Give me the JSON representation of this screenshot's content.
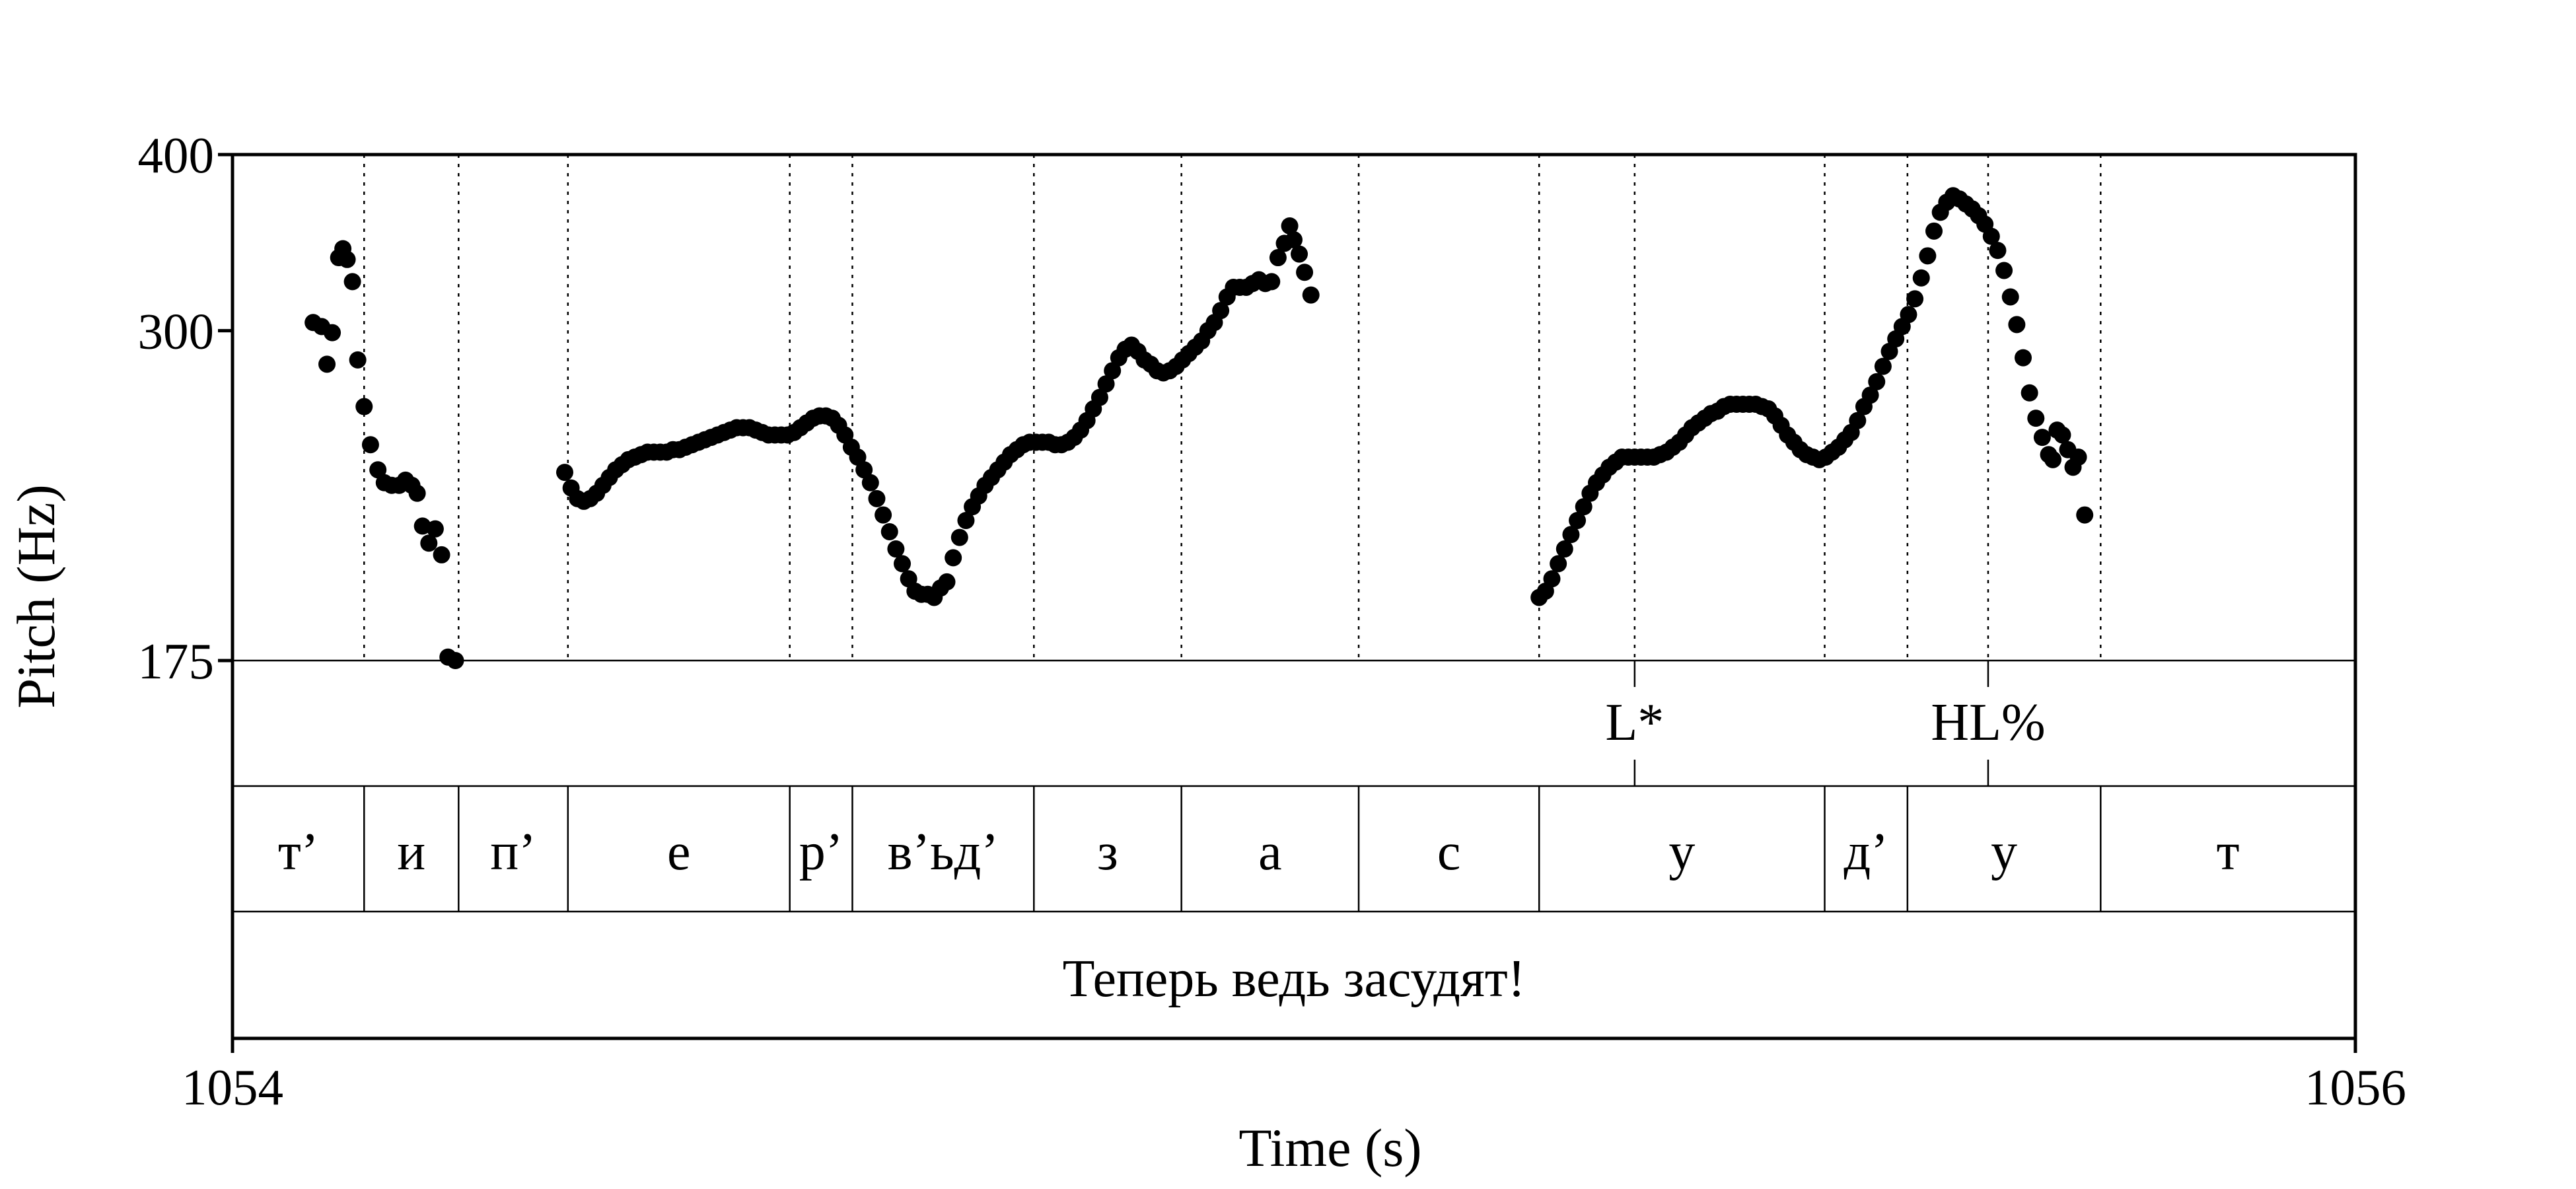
{
  "chart_data": {
    "type": "scatter",
    "xlabel": "Time (s)",
    "ylabel": "Pitch (Hz)",
    "xlim": [
      1054,
      1056
    ],
    "ylim": [
      175,
      400
    ],
    "y_scale": "log",
    "x_ticks": [
      "1054",
      "1056"
    ],
    "y_ticks": [
      {
        "value": 175,
        "label": "175"
      },
      {
        "value": 300,
        "label": "300"
      },
      {
        "value": 400,
        "label": "400"
      }
    ],
    "grid": "dotted vertical lines at segment boundaries",
    "colors": {
      "points": "#000000",
      "frame": "#000000",
      "background": "#ffffff"
    },
    "segment_boundaries": [
      1054.124,
      1054.213,
      1054.316,
      1054.525,
      1054.584,
      1054.755,
      1054.894,
      1055.061,
      1055.231,
      1055.321,
      1055.5,
      1055.578,
      1055.654,
      1055.76
    ],
    "tone_tier": [
      {
        "time": 1055.321,
        "label": "L*"
      },
      {
        "time": 1055.654,
        "label": "HL%"
      }
    ],
    "segment_tier": [
      {
        "start": 1054.0,
        "end": 1054.124,
        "label": "т’"
      },
      {
        "start": 1054.124,
        "end": 1054.213,
        "label": "и"
      },
      {
        "start": 1054.213,
        "end": 1054.316,
        "label": "п’"
      },
      {
        "start": 1054.316,
        "end": 1054.525,
        "label": "е"
      },
      {
        "start": 1054.525,
        "end": 1054.584,
        "label": "р’"
      },
      {
        "start": 1054.584,
        "end": 1054.755,
        "label": "в’ьд’"
      },
      {
        "start": 1054.755,
        "end": 1054.894,
        "label": "з"
      },
      {
        "start": 1054.894,
        "end": 1055.061,
        "label": "а"
      },
      {
        "start": 1055.061,
        "end": 1055.231,
        "label": "с"
      },
      {
        "start": 1055.231,
        "end": 1055.5,
        "label": "у"
      },
      {
        "start": 1055.5,
        "end": 1055.578,
        "label": "д’"
      },
      {
        "start": 1055.578,
        "end": 1055.76,
        "label": "у"
      },
      {
        "start": 1055.76,
        "end": 1056.0,
        "label": "т"
      }
    ],
    "sentence_tier": {
      "start": 1054.0,
      "end": 1056.0,
      "label": "Теперь ведь засудят!"
    },
    "series": [
      {
        "points": [
          [
            1054.076,
            304
          ],
          [
            1054.084,
            302
          ],
          [
            1054.089,
            284
          ],
          [
            1054.094,
            299
          ],
          [
            1054.1,
            338
          ],
          [
            1054.104,
            343
          ],
          [
            1054.108,
            337
          ],
          [
            1054.113,
            325
          ],
          [
            1054.118,
            286
          ],
          [
            1054.124,
            265
          ],
          [
            1054.13,
            249
          ],
          [
            1054.137,
            239
          ],
          [
            1054.143,
            234
          ],
          [
            1054.15,
            233
          ],
          [
            1054.157,
            233
          ],
          [
            1054.163,
            235
          ],
          [
            1054.169,
            233
          ],
          [
            1054.174,
            230
          ],
          [
            1054.179,
            218
          ],
          [
            1054.185,
            212
          ],
          [
            1054.191,
            217
          ],
          [
            1054.197,
            208
          ],
          [
            1054.203,
            176
          ],
          [
            1054.21,
            175
          ]
        ]
      },
      {
        "points": [
          [
            1054.313,
            238
          ],
          [
            1054.319,
            232
          ],
          [
            1054.325,
            228
          ],
          [
            1054.331,
            227
          ],
          [
            1054.337,
            228
          ],
          [
            1054.343,
            230
          ],
          [
            1054.349,
            233
          ],
          [
            1054.355,
            236
          ],
          [
            1054.361,
            239
          ],
          [
            1054.367,
            241
          ],
          [
            1054.373,
            243
          ],
          [
            1054.379,
            244
          ],
          [
            1054.385,
            245
          ],
          [
            1054.391,
            246
          ],
          [
            1054.397,
            246
          ],
          [
            1054.403,
            246
          ],
          [
            1054.409,
            246
          ],
          [
            1054.415,
            247
          ],
          [
            1054.421,
            247
          ],
          [
            1054.427,
            248
          ],
          [
            1054.433,
            249
          ],
          [
            1054.439,
            250
          ],
          [
            1054.445,
            251
          ],
          [
            1054.451,
            252
          ],
          [
            1054.457,
            253
          ],
          [
            1054.463,
            254
          ],
          [
            1054.469,
            255
          ],
          [
            1054.475,
            256
          ],
          [
            1054.481,
            256
          ],
          [
            1054.487,
            256
          ],
          [
            1054.493,
            255
          ],
          [
            1054.499,
            254
          ],
          [
            1054.505,
            253
          ],
          [
            1054.511,
            253
          ],
          [
            1054.517,
            253
          ],
          [
            1054.523,
            253
          ],
          [
            1054.529,
            254
          ],
          [
            1054.535,
            256
          ],
          [
            1054.541,
            258
          ],
          [
            1054.547,
            260
          ],
          [
            1054.553,
            261
          ],
          [
            1054.559,
            261
          ],
          [
            1054.565,
            260
          ],
          [
            1054.571,
            257
          ],
          [
            1054.577,
            253
          ],
          [
            1054.583,
            248
          ],
          [
            1054.589,
            244
          ],
          [
            1054.595,
            239
          ],
          [
            1054.601,
            234
          ],
          [
            1054.607,
            228
          ],
          [
            1054.613,
            222
          ],
          [
            1054.619,
            216
          ],
          [
            1054.625,
            210
          ],
          [
            1054.631,
            205
          ],
          [
            1054.637,
            200
          ],
          [
            1054.643,
            196
          ],
          [
            1054.649,
            195
          ],
          [
            1054.655,
            195
          ],
          [
            1054.661,
            194
          ],
          [
            1054.667,
            197
          ],
          [
            1054.673,
            199
          ],
          [
            1054.679,
            207
          ],
          [
            1054.685,
            214
          ],
          [
            1054.691,
            220
          ],
          [
            1054.697,
            225
          ],
          [
            1054.703,
            229
          ],
          [
            1054.709,
            233
          ],
          [
            1054.715,
            236
          ],
          [
            1054.721,
            239
          ],
          [
            1054.727,
            242
          ],
          [
            1054.733,
            245
          ],
          [
            1054.739,
            247
          ],
          [
            1054.745,
            249
          ],
          [
            1054.751,
            250
          ],
          [
            1054.757,
            250
          ],
          [
            1054.763,
            250
          ],
          [
            1054.769,
            250
          ],
          [
            1054.775,
            249
          ],
          [
            1054.781,
            249
          ],
          [
            1054.787,
            250
          ],
          [
            1054.793,
            252
          ],
          [
            1054.799,
            255
          ],
          [
            1054.805,
            259
          ],
          [
            1054.811,
            264
          ],
          [
            1054.817,
            269
          ],
          [
            1054.823,
            275
          ],
          [
            1054.829,
            281
          ],
          [
            1054.835,
            287
          ],
          [
            1054.841,
            291
          ],
          [
            1054.847,
            293
          ],
          [
            1054.853,
            290
          ],
          [
            1054.859,
            286
          ],
          [
            1054.865,
            284
          ],
          [
            1054.871,
            281
          ],
          [
            1054.877,
            280
          ],
          [
            1054.883,
            281
          ],
          [
            1054.889,
            283
          ],
          [
            1054.895,
            286
          ],
          [
            1054.901,
            289
          ],
          [
            1054.907,
            292
          ],
          [
            1054.913,
            295
          ],
          [
            1054.919,
            300
          ],
          [
            1054.925,
            304
          ],
          [
            1054.931,
            310
          ],
          [
            1054.937,
            317
          ],
          [
            1054.943,
            322
          ],
          [
            1054.949,
            322
          ],
          [
            1054.955,
            322
          ],
          [
            1054.961,
            324
          ],
          [
            1054.967,
            326
          ],
          [
            1054.973,
            324
          ],
          [
            1054.979,
            325
          ],
          [
            1054.985,
            338
          ],
          [
            1054.991,
            346
          ],
          [
            1054.996,
            356
          ],
          [
            1055.0,
            348
          ],
          [
            1055.005,
            340
          ],
          [
            1055.01,
            330
          ],
          [
            1055.016,
            318
          ]
        ]
      },
      {
        "points": [
          [
            1055.231,
            194
          ],
          [
            1055.237,
            196
          ],
          [
            1055.243,
            200
          ],
          [
            1055.249,
            205
          ],
          [
            1055.255,
            210
          ],
          [
            1055.261,
            215
          ],
          [
            1055.267,
            220
          ],
          [
            1055.273,
            225
          ],
          [
            1055.279,
            230
          ],
          [
            1055.285,
            234
          ],
          [
            1055.291,
            237
          ],
          [
            1055.297,
            240
          ],
          [
            1055.303,
            242
          ],
          [
            1055.309,
            244
          ],
          [
            1055.315,
            244
          ],
          [
            1055.321,
            244
          ],
          [
            1055.327,
            244
          ],
          [
            1055.333,
            244
          ],
          [
            1055.339,
            244
          ],
          [
            1055.345,
            245
          ],
          [
            1055.351,
            246
          ],
          [
            1055.357,
            248
          ],
          [
            1055.363,
            250
          ],
          [
            1055.369,
            253
          ],
          [
            1055.375,
            256
          ],
          [
            1055.381,
            258
          ],
          [
            1055.387,
            260
          ],
          [
            1055.393,
            262
          ],
          [
            1055.399,
            263
          ],
          [
            1055.405,
            265
          ],
          [
            1055.411,
            266
          ],
          [
            1055.417,
            266
          ],
          [
            1055.423,
            266
          ],
          [
            1055.429,
            266
          ],
          [
            1055.435,
            266
          ],
          [
            1055.441,
            265
          ],
          [
            1055.447,
            264
          ],
          [
            1055.453,
            261
          ],
          [
            1055.459,
            257
          ],
          [
            1055.465,
            253
          ],
          [
            1055.471,
            250
          ],
          [
            1055.477,
            247
          ],
          [
            1055.483,
            245
          ],
          [
            1055.489,
            244
          ],
          [
            1055.495,
            243
          ],
          [
            1055.501,
            244
          ],
          [
            1055.507,
            246
          ],
          [
            1055.513,
            248
          ],
          [
            1055.519,
            251
          ],
          [
            1055.525,
            254
          ],
          [
            1055.531,
            259
          ],
          [
            1055.537,
            265
          ],
          [
            1055.543,
            270
          ],
          [
            1055.549,
            276
          ],
          [
            1055.555,
            283
          ],
          [
            1055.561,
            290
          ],
          [
            1055.567,
            296
          ],
          [
            1055.573,
            302
          ],
          [
            1055.579,
            308
          ],
          [
            1055.585,
            316
          ],
          [
            1055.591,
            327
          ],
          [
            1055.597,
            339
          ],
          [
            1055.603,
            353
          ],
          [
            1055.609,
            364
          ],
          [
            1055.615,
            370
          ],
          [
            1055.621,
            374
          ],
          [
            1055.627,
            372
          ],
          [
            1055.633,
            369
          ],
          [
            1055.639,
            366
          ],
          [
            1055.645,
            362
          ],
          [
            1055.651,
            357
          ],
          [
            1055.657,
            350
          ],
          [
            1055.663,
            342
          ],
          [
            1055.669,
            331
          ],
          [
            1055.675,
            317
          ],
          [
            1055.681,
            303
          ],
          [
            1055.687,
            287
          ],
          [
            1055.693,
            271
          ],
          [
            1055.699,
            260
          ],
          [
            1055.705,
            252
          ],
          [
            1055.711,
            245
          ],
          [
            1055.715,
            243
          ],
          [
            1055.719,
            255
          ],
          [
            1055.724,
            253
          ],
          [
            1055.729,
            247
          ],
          [
            1055.734,
            240
          ],
          [
            1055.739,
            244
          ],
          [
            1055.745,
            222
          ]
        ]
      }
    ]
  }
}
